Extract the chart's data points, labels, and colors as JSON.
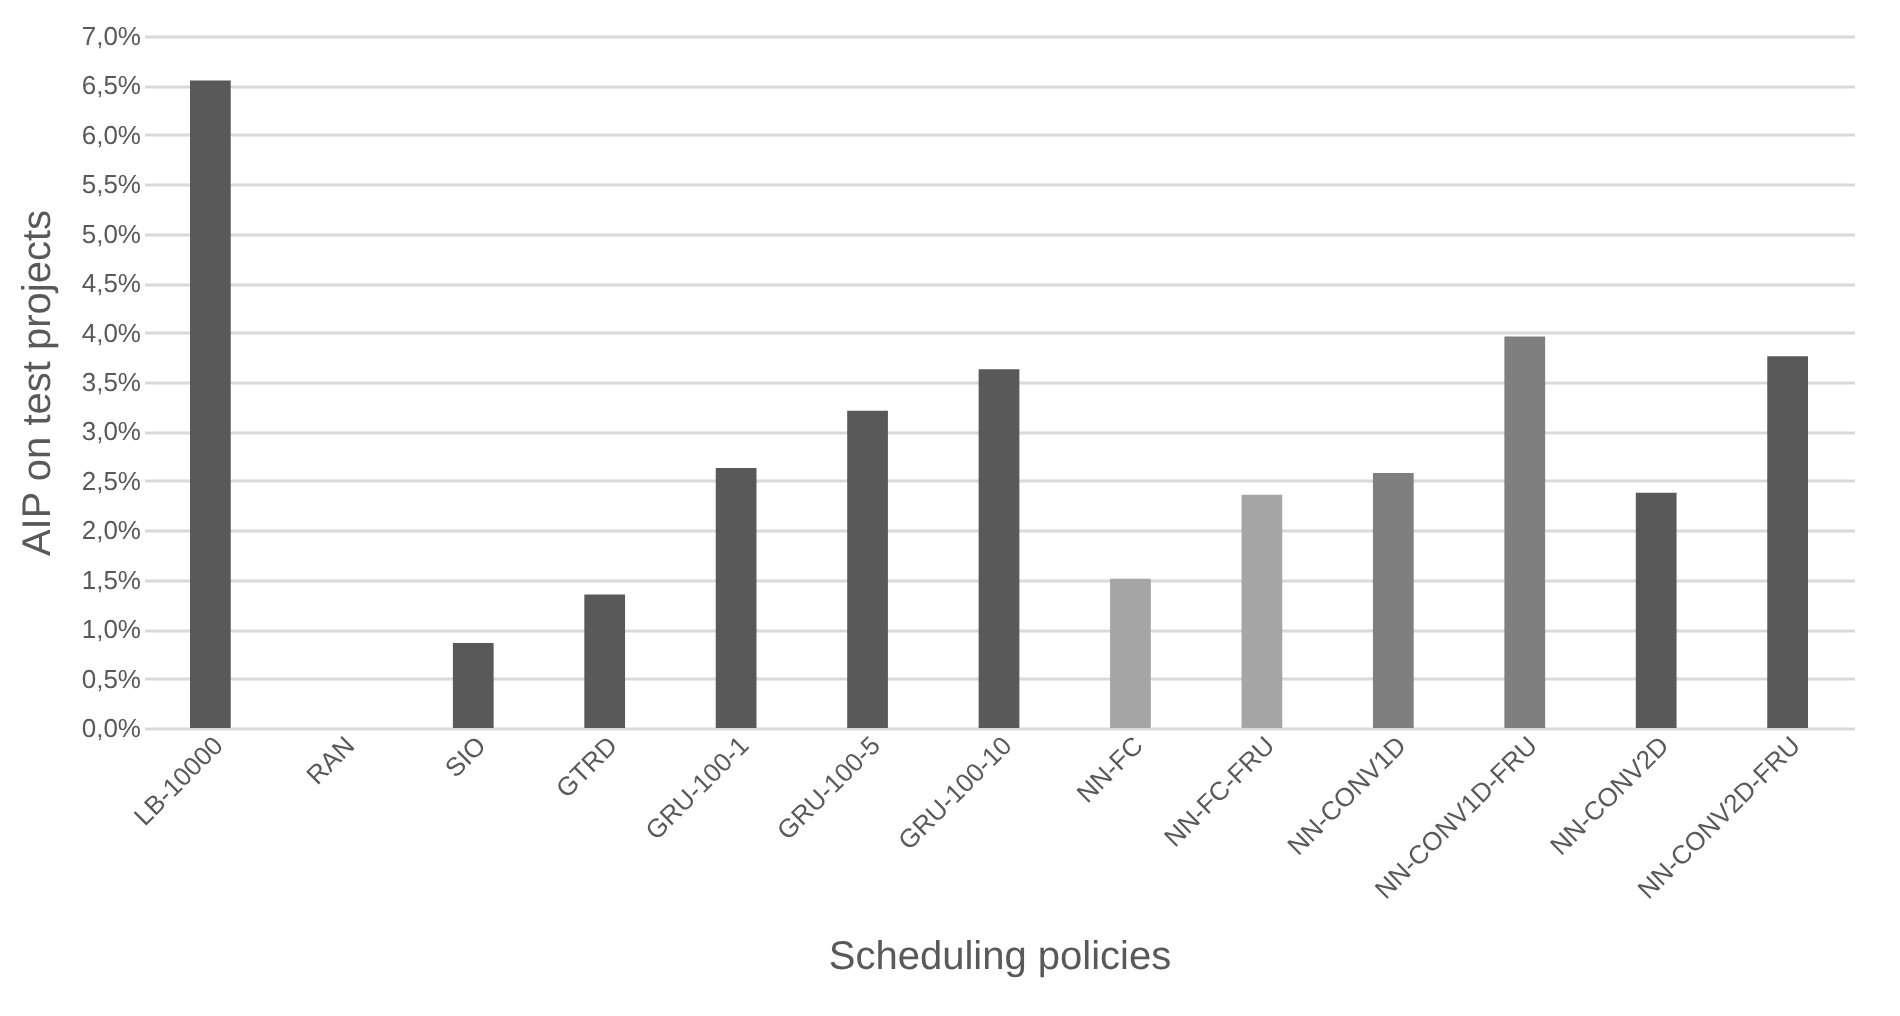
{
  "chart_data": {
    "type": "bar",
    "xlabel": "Scheduling policies",
    "ylabel": "AIP on test projects",
    "categories": [
      "LB-10000",
      "RAN",
      "SIO",
      "GTRD",
      "GRU-100-1",
      "GRU-100-5",
      "GRU-100-10",
      "NN-FC",
      "NN-FC-FRU",
      "NN-CONV1D",
      "NN-CONV1D-FRU",
      "NN-CONV2D",
      "NN-CONV2D-FRU"
    ],
    "values": [
      6.55,
      0,
      0.86,
      1.35,
      2.63,
      3.21,
      3.63,
      1.51,
      2.36,
      2.58,
      3.96,
      2.38,
      3.76
    ],
    "colors": [
      "#595959",
      "#595959",
      "#595959",
      "#595959",
      "#595959",
      "#595959",
      "#595959",
      "#a5a5a5",
      "#a5a5a5",
      "#7f7f7f",
      "#7f7f7f",
      "#595959",
      "#595959"
    ],
    "ylim": [
      0,
      7
    ],
    "yticks": [
      {
        "value": 0,
        "label": "0,0%"
      },
      {
        "value": 0.5,
        "label": "0,5%"
      },
      {
        "value": 1,
        "label": "1,0%"
      },
      {
        "value": 1.5,
        "label": "1,5%"
      },
      {
        "value": 2,
        "label": "2,0%"
      },
      {
        "value": 2.5,
        "label": "2,5%"
      },
      {
        "value": 3,
        "label": "3,0%"
      },
      {
        "value": 3.5,
        "label": "3,5%"
      },
      {
        "value": 4,
        "label": "4,0%"
      },
      {
        "value": 4.5,
        "label": "4,5%"
      },
      {
        "value": 5,
        "label": "5,0%"
      },
      {
        "value": 5.5,
        "label": "5,5%"
      },
      {
        "value": 6,
        "label": "6,0%"
      },
      {
        "value": 6.5,
        "label": "6,5%"
      },
      {
        "value": 7,
        "label": "7,0%"
      }
    ],
    "grid": "y"
  }
}
